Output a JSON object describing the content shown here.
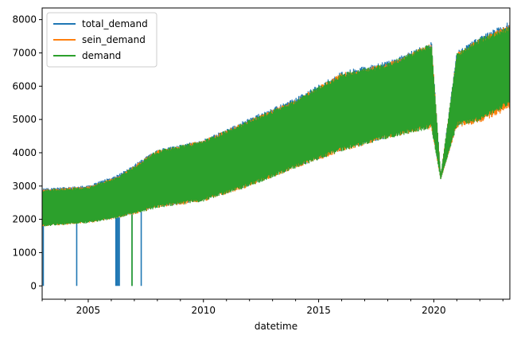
{
  "chart_data": {
    "type": "line",
    "title": "",
    "xlabel": "datetime",
    "ylabel": "",
    "xlim": [
      2003.0,
      2023.3
    ],
    "ylim": [
      -400,
      8350
    ],
    "x_ticks": [
      2005,
      2010,
      2015,
      2020
    ],
    "x_tick_labels": [
      "2005",
      "2010",
      "2015",
      "2020"
    ],
    "y_ticks": [
      0,
      1000,
      2000,
      3000,
      4000,
      5000,
      6000,
      7000,
      8000
    ],
    "y_tick_labels": [
      "0",
      "1000",
      "2000",
      "3000",
      "4000",
      "5000",
      "6000",
      "7000",
      "8000"
    ],
    "grid": false,
    "legend_position": "top-left",
    "series": [
      {
        "name": "total_demand",
        "color": "#1f77b4",
        "x": [
          2003.0,
          2005.0,
          2006.3,
          2008.0,
          2010.0,
          2012.0,
          2014.0,
          2016.0,
          2018.0,
          2019.9,
          2020.3,
          2021.0,
          2022.0,
          2023.3
        ],
        "upper": [
          2930,
          3020,
          3350,
          4100,
          4400,
          5050,
          5650,
          6450,
          6750,
          7350,
          3300,
          7050,
          7500,
          7950
        ],
        "lower": [
          1800,
          1900,
          2050,
          2350,
          2550,
          3000,
          3550,
          4050,
          4450,
          4750,
          3200,
          4800,
          4950,
          5450
        ],
        "dropouts": [
          2003.05,
          2004.5,
          2006.2,
          2006.25,
          2006.3,
          2006.35,
          2006.9,
          2007.3
        ]
      },
      {
        "name": "sein_demand",
        "color": "#ff7f0e",
        "x": [
          2003.0,
          2005.0,
          2006.3,
          2008.0,
          2010.0,
          2012.0,
          2014.0,
          2016.0,
          2018.0,
          2019.9,
          2020.3,
          2021.0,
          2022.0,
          2023.3
        ],
        "upper": [
          2900,
          3000,
          3300,
          4080,
          4380,
          5000,
          5600,
          6400,
          6700,
          7300,
          3300,
          7000,
          7450,
          7850
        ],
        "lower": [
          1780,
          1880,
          2030,
          2330,
          2530,
          2980,
          3530,
          4030,
          4420,
          4720,
          3200,
          4750,
          4900,
          5300
        ]
      },
      {
        "name": "demand",
        "color": "#2ca02c",
        "x": [
          2003.0,
          2005.0,
          2006.3,
          2008.0,
          2010.0,
          2012.0,
          2014.0,
          2016.0,
          2018.0,
          2019.9,
          2020.3,
          2021.0,
          2022.0,
          2023.3
        ],
        "upper": [
          2900,
          2980,
          3300,
          4080,
          4380,
          5000,
          5600,
          6400,
          6700,
          7300,
          3300,
          7000,
          7450,
          7800
        ],
        "lower": [
          1780,
          1880,
          2030,
          2330,
          2530,
          2980,
          3530,
          4030,
          4420,
          4720,
          3200,
          4800,
          4950,
          5450
        ],
        "dropouts": [
          2006.9
        ]
      }
    ]
  }
}
